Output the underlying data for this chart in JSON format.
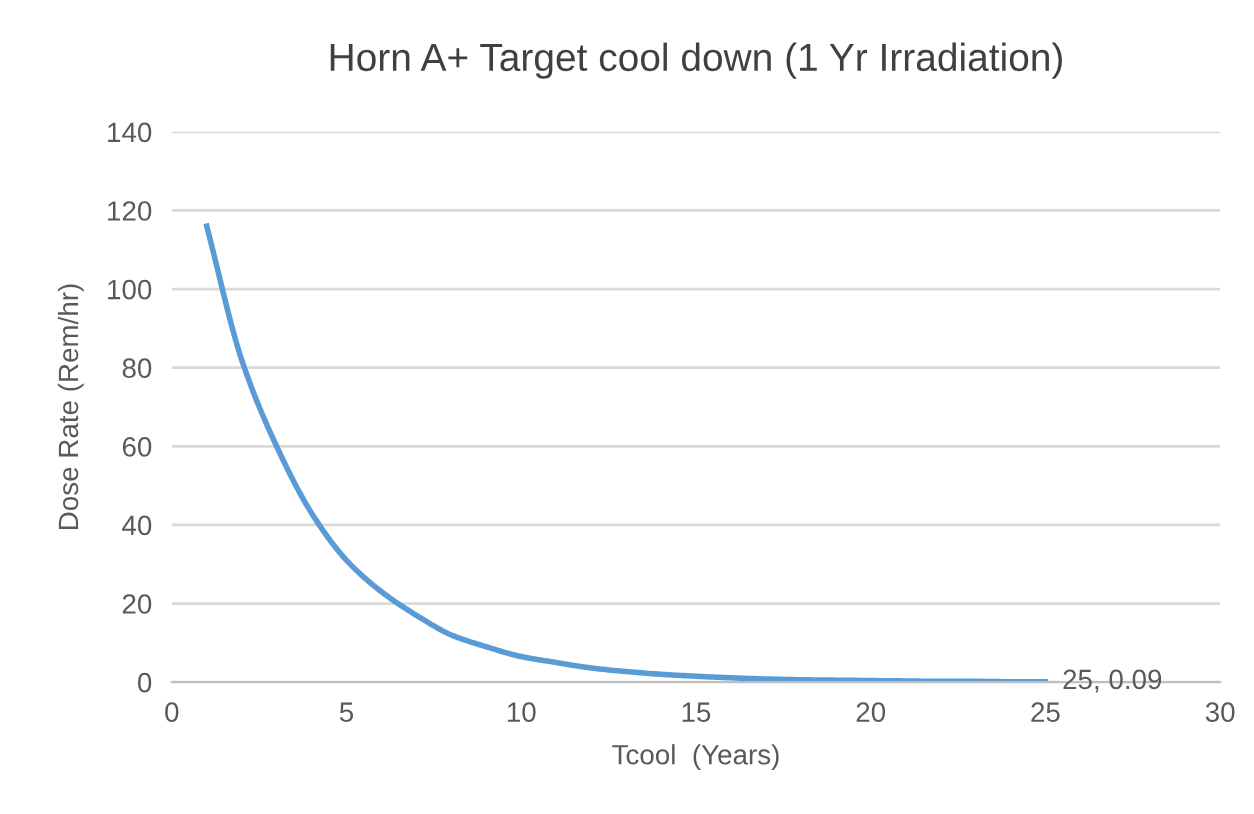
{
  "chart_data": {
    "type": "line",
    "title": "Horn A+ Target cool down (1 Yr Irradiation)",
    "xlabel": "Tcool  (Years)",
    "ylabel": "Dose Rate (Rem/hr)",
    "x": [
      1,
      2,
      3,
      4,
      5,
      6,
      7,
      8,
      9,
      10,
      11,
      12,
      13,
      14,
      15,
      16,
      17,
      18,
      19,
      20,
      21,
      22,
      23,
      24,
      25
    ],
    "series": [
      {
        "color": "#5b9bd5",
        "values": [
          116,
          82,
          60,
          43,
          31,
          23,
          17,
          12,
          9,
          6.5,
          5,
          3.6,
          2.7,
          2,
          1.5,
          1.1,
          0.8,
          0.6,
          0.5,
          0.4,
          0.3,
          0.2,
          0.2,
          0.1,
          0.09
        ]
      }
    ],
    "annotations": [
      {
        "text": "25, 0.09",
        "x": 25,
        "y": 0.09
      }
    ],
    "xlim": [
      0,
      30
    ],
    "xticks": [
      0,
      5,
      10,
      15,
      20,
      25,
      30
    ],
    "ylim": [
      0,
      140
    ],
    "yticks": [
      0,
      20,
      40,
      60,
      80,
      100,
      120,
      140
    ],
    "grid": "y",
    "marker": "none",
    "line_style": "solid"
  }
}
